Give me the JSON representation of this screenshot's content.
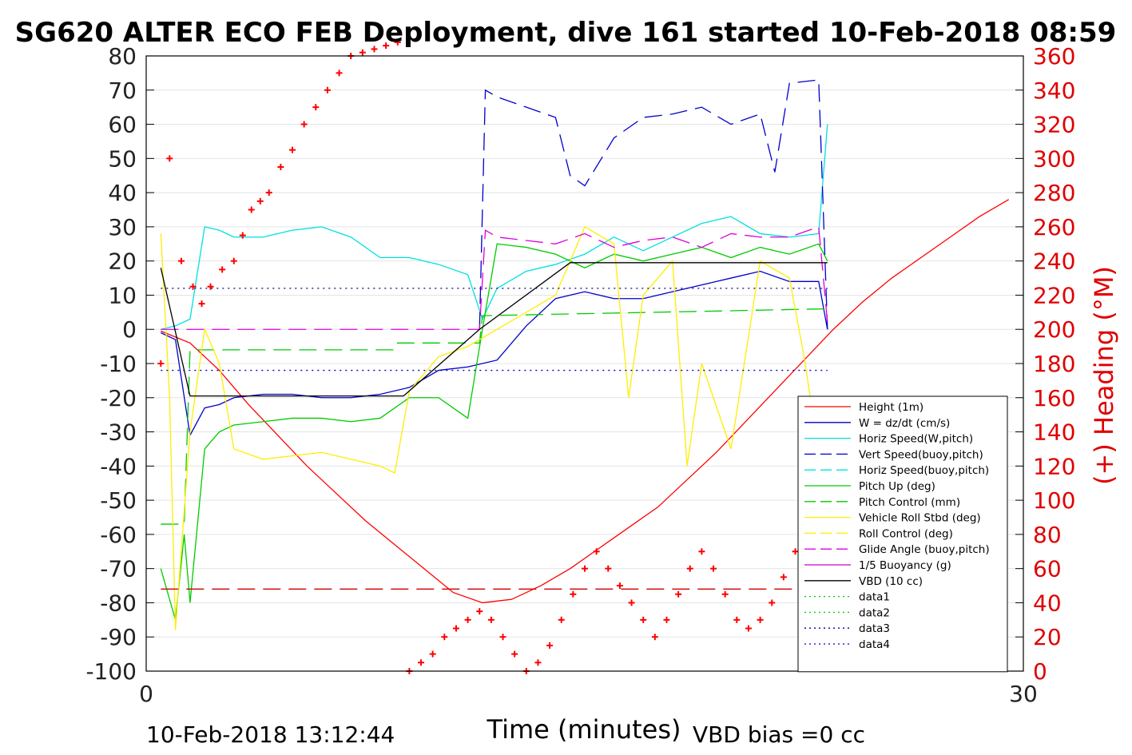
{
  "chart_data": {
    "type": "line",
    "title": "SG620 ALTER ECO FEB Deployment, dive 161 started 10-Feb-2018 08:59",
    "xlabel": "Time (minutes)",
    "ylabel_right": "(+) Heading (°M)",
    "footer_left": "10-Feb-2018 13:12:44",
    "footer_right": "VBD bias =0 cc",
    "xlim": [
      0,
      30
    ],
    "ylim_left": [
      -100,
      80
    ],
    "ylim_right": [
      0,
      360
    ],
    "x_ticks": [
      "0",
      "30"
    ],
    "y_ticks_left": [
      "80",
      "70",
      "60",
      "50",
      "40",
      "30",
      "20",
      "10",
      "0",
      "-10",
      "-20",
      "-30",
      "-40",
      "-50",
      "-60",
      "-70",
      "-80",
      "-90",
      "-100"
    ],
    "y_ticks_right": [
      "360",
      "340",
      "320",
      "300",
      "280",
      "260",
      "240",
      "220",
      "200",
      "180",
      "160",
      "140",
      "120",
      "100",
      "80",
      "60",
      "40",
      "20",
      "0"
    ],
    "grid": "horizontal",
    "legend_position": "right-inside",
    "legend": [
      {
        "label": "Height (1m)",
        "color": "#ff0000",
        "style": "solid"
      },
      {
        "label": "W = dz/dt (cm/s)",
        "color": "#0000cc",
        "style": "solid"
      },
      {
        "label": "Horiz Speed(W,pitch)",
        "color": "#00e0e0",
        "style": "solid"
      },
      {
        "label": "Vert Speed(buoy,pitch)",
        "color": "#0000cc",
        "style": "dashed"
      },
      {
        "label": "Horiz Speed(buoy,pitch)",
        "color": "#00e0e0",
        "style": "dashed"
      },
      {
        "label": "Pitch Up (deg)",
        "color": "#00cc00",
        "style": "solid"
      },
      {
        "label": "Pitch Control (mm)",
        "color": "#00cc00",
        "style": "dashed"
      },
      {
        "label": "Vehicle Roll Stbd (deg)",
        "color": "#ffee00",
        "style": "solid"
      },
      {
        "label": "Roll Control (deg)",
        "color": "#ffee00",
        "style": "dashed"
      },
      {
        "label": "Glide Angle (buoy,pitch)",
        "color": "#dd00dd",
        "style": "dashed"
      },
      {
        "label": "1/5 Buoyancy (g)",
        "color": "#cc00cc",
        "style": "solid"
      },
      {
        "label": "VBD (10 cc)",
        "color": "#000000",
        "style": "solid"
      },
      {
        "label": "data1",
        "color": "#00cc00",
        "style": "dotted"
      },
      {
        "label": "data2",
        "color": "#00cc00",
        "style": "dotted"
      },
      {
        "label": "data3",
        "color": "#000088",
        "style": "dotted"
      },
      {
        "label": "data4",
        "color": "#0000cc",
        "style": "dotted"
      }
    ],
    "series": [
      {
        "name": "Height (1m)",
        "color": "#ff0000",
        "style": "solid",
        "x": [
          0.5,
          1.5,
          2.5,
          3.5,
          4.5,
          5.5,
          6.5,
          7.5,
          8.5,
          9.5,
          10.5,
          11.5,
          12.5,
          13.5,
          14.5,
          15.5,
          16.5,
          17.5,
          18.5,
          19.5,
          20.5,
          21.5,
          22.5,
          23.5,
          24.5,
          25.5,
          26.5,
          27.5,
          28.5,
          29.5
        ],
        "y": [
          -0.5,
          -4,
          -12,
          -22,
          -31,
          -40,
          -48,
          -56,
          -63,
          -70,
          -77,
          -80,
          -79,
          -75,
          -70,
          -64,
          -58,
          -52,
          -44,
          -36,
          -27,
          -18,
          -9,
          0,
          8,
          15,
          21,
          27,
          33,
          38
        ]
      },
      {
        "name": "W = dz/dt (cm/s)",
        "color": "#0000cc",
        "style": "solid",
        "x": [
          0.5,
          1.0,
          1.5,
          2.0,
          2.5,
          3.0,
          4.0,
          5.0,
          6.0,
          7.0,
          8.0,
          9.0,
          10.0,
          11.0,
          12.0,
          13.0,
          14.0,
          15.0,
          16.0,
          17.0,
          18.0,
          19.0,
          20.0,
          21.0,
          22.0,
          23.0,
          23.3
        ],
        "y": [
          -1,
          -3,
          -31,
          -23,
          -22,
          -20,
          -19,
          -19,
          -20,
          -20,
          -19,
          -17,
          -12,
          -11,
          -9,
          1,
          9,
          11,
          9,
          9,
          11,
          13,
          15,
          17,
          14,
          14,
          0
        ]
      },
      {
        "name": "Horiz Speed(W,pitch)",
        "color": "#00e0e0",
        "style": "solid",
        "x": [
          0.5,
          1.0,
          1.5,
          2.0,
          2.5,
          3.0,
          4.0,
          5.0,
          6.0,
          7.0,
          8.0,
          9.0,
          10.0,
          11.0,
          11.5,
          12.0,
          13.0,
          14.0,
          15.0,
          16.0,
          17.0,
          18.0,
          19.0,
          20.0,
          21.0,
          22.0,
          23.0,
          23.3
        ],
        "y": [
          0,
          1,
          3,
          30,
          29,
          27,
          27,
          29,
          30,
          27,
          21,
          21,
          19,
          16,
          3,
          12,
          17,
          19,
          22,
          27,
          23,
          27,
          31,
          33,
          28,
          27,
          28,
          60
        ]
      },
      {
        "name": "Vert Speed(buoy,pitch)",
        "color": "#0000cc",
        "style": "dashed",
        "x": [
          11.4,
          11.6,
          12.0,
          13.0,
          14.0,
          14.5,
          15.0,
          16.0,
          17.0,
          18.0,
          19.0,
          20.0,
          21.0,
          21.5,
          22.0,
          23.0,
          23.3
        ],
        "y": [
          0,
          70,
          68,
          65,
          62,
          45,
          42,
          56,
          62,
          63,
          65,
          60,
          63,
          46,
          72,
          73,
          0
        ]
      },
      {
        "name": "Pitch Up (deg)",
        "color": "#00cc00",
        "style": "solid",
        "x": [
          0.5,
          1.0,
          1.3,
          1.5,
          2.0,
          2.5,
          3.0,
          4.0,
          5.0,
          6.0,
          7.0,
          8.0,
          9.0,
          10.0,
          11.0,
          11.5,
          12.0,
          13.0,
          14.0,
          15.0,
          16.0,
          17.0,
          18.0,
          19.0,
          20.0,
          21.0,
          22.0,
          23.0,
          23.3
        ],
        "y": [
          -70,
          -85,
          -60,
          -80,
          -35,
          -30,
          -28,
          -27,
          -26,
          -26,
          -27,
          -26,
          -20,
          -20,
          -26,
          0,
          25,
          24,
          22,
          18,
          22,
          20,
          22,
          24,
          21,
          24,
          22,
          25,
          20
        ]
      },
      {
        "name": "Pitch Control (mm)",
        "color": "#00cc00",
        "style": "dashed",
        "x": [
          0.5,
          1.3,
          1.5,
          2.0,
          8.5,
          8.6,
          11.4,
          11.5,
          23.3
        ],
        "y": [
          -57,
          -57,
          -6,
          -6,
          -6,
          -4,
          -4,
          4,
          6
        ]
      },
      {
        "name": "Vehicle Roll Stbd (deg)",
        "color": "#ffee00",
        "style": "solid",
        "x": [
          0.5,
          0.8,
          1.0,
          1.5,
          2.0,
          2.5,
          3.0,
          4.0,
          5.0,
          6.0,
          7.0,
          8.0,
          8.5,
          9.0,
          10.0,
          11.0,
          12.0,
          13.0,
          14.0,
          15.0,
          16.0,
          16.5,
          17.0,
          18.0,
          18.5,
          19.0,
          20.0,
          21.0,
          22.0,
          22.5,
          23.0,
          23.3
        ],
        "y": [
          28,
          -20,
          -88,
          -30,
          0,
          -10,
          -35,
          -38,
          -37,
          -36,
          -38,
          -40,
          -42,
          -18,
          -8,
          -5,
          0,
          5,
          10,
          30,
          25,
          -20,
          10,
          20,
          -40,
          -10,
          -35,
          20,
          15,
          -8,
          -36,
          -44
        ]
      },
      {
        "name": "Glide Angle (buoy,pitch)",
        "color": "#dd00dd",
        "style": "dashed",
        "x": [
          0.5,
          11.4,
          11.6,
          12.0,
          13.0,
          14.0,
          15.0,
          16.0,
          17.0,
          18.0,
          19.0,
          20.0,
          21.0,
          22.0,
          23.0,
          23.3
        ],
        "y": [
          0,
          0,
          29,
          27,
          26,
          25,
          28,
          24,
          26,
          27,
          24,
          28,
          27,
          27,
          30,
          2
        ]
      },
      {
        "name": "VBD (10 cc)",
        "color": "#000000",
        "style": "solid",
        "x": [
          0.5,
          1.5,
          8.8,
          11.4,
          14.5,
          23.3
        ],
        "y": [
          18,
          -19.5,
          -19.5,
          0,
          19.5,
          19.5
        ]
      },
      {
        "name": "data3",
        "color": "#000088",
        "style": "dotted",
        "x": [
          0.5,
          23.3
        ],
        "y": [
          12,
          12
        ]
      },
      {
        "name": "data4",
        "color": "#0000cc",
        "style": "dotted",
        "x": [
          0.5,
          23.3
        ],
        "y": [
          -12,
          -12
        ]
      },
      {
        "name": "data2",
        "color": "#cc0000",
        "style": "dashed",
        "x": [
          0.5,
          23.3
        ],
        "y": [
          -76,
          -76
        ]
      }
    ],
    "heading_points": {
      "color": "#ff0000",
      "x": [
        0.5,
        0.8,
        1.2,
        1.6,
        1.9,
        2.2,
        2.6,
        3.0,
        3.3,
        3.6,
        3.9,
        4.2,
        4.6,
        5.0,
        5.4,
        5.8,
        6.2,
        6.6,
        7.0,
        7.4,
        7.8,
        8.2,
        8.6,
        9.0,
        9.4,
        9.8,
        10.2,
        10.6,
        11.0,
        11.4,
        11.8,
        12.2,
        12.6,
        13.0,
        13.4,
        13.8,
        14.2,
        14.6,
        15.0,
        15.4,
        15.8,
        16.2,
        16.6,
        17.0,
        17.4,
        17.8,
        18.2,
        18.6,
        19.0,
        19.4,
        19.8,
        20.2,
        20.6,
        21.0,
        21.4,
        21.8,
        22.2,
        22.6,
        23.0,
        23.3
      ],
      "y": [
        180,
        300,
        240,
        225,
        215,
        225,
        235,
        240,
        255,
        270,
        275,
        280,
        295,
        305,
        320,
        330,
        340,
        350,
        360,
        362,
        364,
        366,
        368,
        0,
        5,
        10,
        20,
        25,
        30,
        35,
        30,
        20,
        10,
        0,
        5,
        15,
        30,
        45,
        60,
        70,
        60,
        50,
        40,
        30,
        20,
        30,
        45,
        60,
        70,
        60,
        45,
        30,
        25,
        30,
        40,
        55,
        70,
        80,
        65,
        55
      ]
    }
  }
}
